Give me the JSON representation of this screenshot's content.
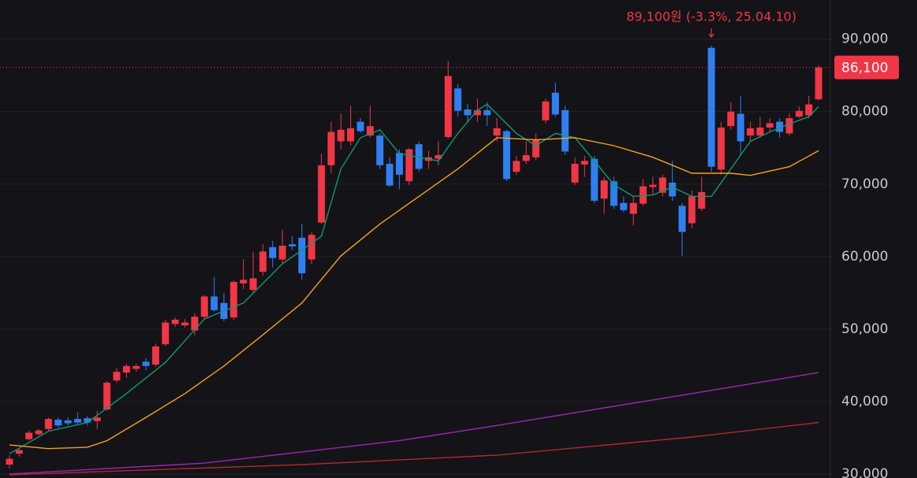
{
  "chart_data": {
    "type": "candlestick",
    "annotation": {
      "text": "89,100원 (-3.3%, 25.04.10)",
      "index": 72
    },
    "up_color": "#f23645",
    "down_color": "#2f7ff0",
    "open": [
      31300,
      32800,
      34800,
      35500,
      36200,
      37500,
      37400,
      37600,
      37700,
      37300,
      38900,
      42900,
      44000,
      44500,
      45500,
      45100,
      47900,
      50700,
      50500,
      49800,
      51700,
      54500,
      53600,
      51600,
      56300,
      55400,
      57900,
      61300,
      59600,
      61700,
      62600,
      59600,
      64700,
      72600,
      75900,
      75900,
      78600,
      76700,
      76700,
      72800,
      74300,
      70400,
      75500,
      73200,
      73500,
      76500,
      83200,
      80300,
      79500,
      80200,
      76700,
      77300,
      71700,
      73200,
      73700,
      78800,
      82600,
      80200,
      70200,
      72700,
      73500,
      68000,
      70400,
      67400,
      65900,
      67300,
      69600,
      68800,
      70200,
      67000,
      64600,
      66600,
      88800,
      72000,
      78000,
      79700,
      76700,
      76700,
      77800,
      78600,
      77000,
      79300,
      79500,
      81700
    ],
    "high": [
      32600,
      33500,
      36000,
      36200,
      37800,
      37800,
      37800,
      38500,
      38000,
      38700,
      42800,
      44600,
      45200,
      45200,
      46000,
      48000,
      51300,
      51600,
      51400,
      52200,
      54700,
      57200,
      55000,
      56700,
      59600,
      60700,
      61700,
      62200,
      63700,
      62800,
      64500,
      63400,
      74200,
      78600,
      79700,
      80800,
      79100,
      80800,
      77000,
      73700,
      74800,
      75000,
      75900,
      74600,
      75900,
      87000,
      83800,
      81100,
      81800,
      81300,
      79100,
      77500,
      73900,
      75900,
      77000,
      81800,
      84000,
      80800,
      73700,
      73900,
      73900,
      71000,
      71000,
      68300,
      68300,
      70700,
      71000,
      71300,
      73200,
      67400,
      69100,
      71000,
      89100,
      78600,
      81300,
      82200,
      78600,
      79300,
      79100,
      79100,
      79700,
      80700,
      82200,
      86400
    ],
    "low": [
      30800,
      32400,
      34600,
      35300,
      36000,
      36400,
      36700,
      36700,
      36700,
      36200,
      38700,
      42600,
      43300,
      44100,
      44300,
      44800,
      47600,
      50300,
      50200,
      49100,
      51400,
      52400,
      51100,
      51200,
      55500,
      55000,
      57400,
      58500,
      59000,
      60900,
      56800,
      59000,
      64500,
      71500,
      74800,
      75300,
      77000,
      76400,
      72100,
      69600,
      69300,
      69900,
      71700,
      72100,
      72600,
      76300,
      79300,
      78600,
      78600,
      78000,
      75900,
      70400,
      71300,
      72800,
      73300,
      78400,
      79300,
      74000,
      69900,
      71000,
      67400,
      65900,
      66600,
      66100,
      64300,
      67000,
      68500,
      68300,
      67700,
      60100,
      63900,
      66300,
      71700,
      71300,
      77500,
      73900,
      75900,
      76400,
      77200,
      76400,
      76700,
      79100,
      79100,
      81500
    ],
    "close": [
      32100,
      33300,
      35700,
      36000,
      37600,
      36700,
      37000,
      37100,
      37100,
      37800,
      42600,
      44100,
      44900,
      44900,
      44900,
      47600,
      50900,
      51300,
      50900,
      51700,
      54500,
      52600,
      51400,
      56500,
      56800,
      57000,
      60700,
      59800,
      61500,
      61400,
      57700,
      63000,
      72600,
      77200,
      77500,
      77700,
      77300,
      78000,
      72600,
      69800,
      71300,
      74800,
      72100,
      73700,
      74000,
      84900,
      80100,
      79500,
      80200,
      79500,
      77700,
      70700,
      73200,
      74000,
      76200,
      81400,
      79600,
      74500,
      72800,
      73200,
      67700,
      70500,
      67000,
      66400,
      67400,
      69700,
      69900,
      70900,
      68300,
      63400,
      68300,
      68900,
      72400,
      77800,
      80000,
      75900,
      77700,
      77800,
      78400,
      77200,
      79100,
      80100,
      81000,
      86100
    ],
    "moving_averages": [
      {
        "color": "#0d9a74",
        "x": [
          0,
          4,
          8,
          12,
          16,
          20,
          24,
          28,
          32,
          34,
          36,
          38,
          40,
          44,
          46,
          48,
          49,
          52,
          54,
          56,
          58,
          60,
          62,
          64,
          66,
          68,
          70,
          72,
          74,
          76,
          78,
          80,
          82,
          83
        ],
        "values": [
          32800,
          35900,
          37100,
          41100,
          45400,
          51400,
          53600,
          59000,
          62800,
          72100,
          76400,
          77500,
          74200,
          73200,
          77000,
          80200,
          81000,
          77000,
          75300,
          77000,
          76400,
          73200,
          69900,
          68300,
          68500,
          69600,
          68300,
          68300,
          72100,
          75900,
          77200,
          78300,
          79300,
          80700
        ]
      },
      {
        "color": "#f7a21b",
        "x": [
          0,
          4,
          8,
          10,
          14,
          18,
          22,
          26,
          30,
          34,
          38,
          42,
          46,
          50,
          54,
          58,
          62,
          66,
          70,
          74,
          76,
          80,
          83
        ],
        "values": [
          34000,
          33500,
          33700,
          34600,
          37800,
          41100,
          44900,
          49200,
          53600,
          60100,
          64500,
          68300,
          72100,
          76400,
          76100,
          76400,
          75300,
          73700,
          71500,
          71500,
          71200,
          72400,
          74600
        ]
      },
      {
        "color": "#9c27b0",
        "x": [
          0,
          20,
          40,
          50,
          60,
          70,
          83
        ],
        "values": [
          30000,
          31500,
          34600,
          36700,
          38900,
          41100,
          44000
        ]
      },
      {
        "color": "#b22833",
        "x": [
          0,
          30,
          50,
          70,
          83
        ],
        "values": [
          29900,
          31300,
          32600,
          35100,
          37100
        ]
      }
    ],
    "last_price": {
      "value": 86100,
      "label": "86,100"
    },
    "ylim": [
      29450,
      95400
    ],
    "yticks": [
      {
        "value": 30000,
        "label": "30,000"
      },
      {
        "value": 40000,
        "label": "40,000"
      },
      {
        "value": 50000,
        "label": "50,000"
      },
      {
        "value": 60000,
        "label": "60,000"
      },
      {
        "value": 70000,
        "label": "70,000"
      },
      {
        "value": 80000,
        "label": "80,000"
      },
      {
        "value": 90000,
        "label": "90,000"
      }
    ],
    "grid": true
  }
}
